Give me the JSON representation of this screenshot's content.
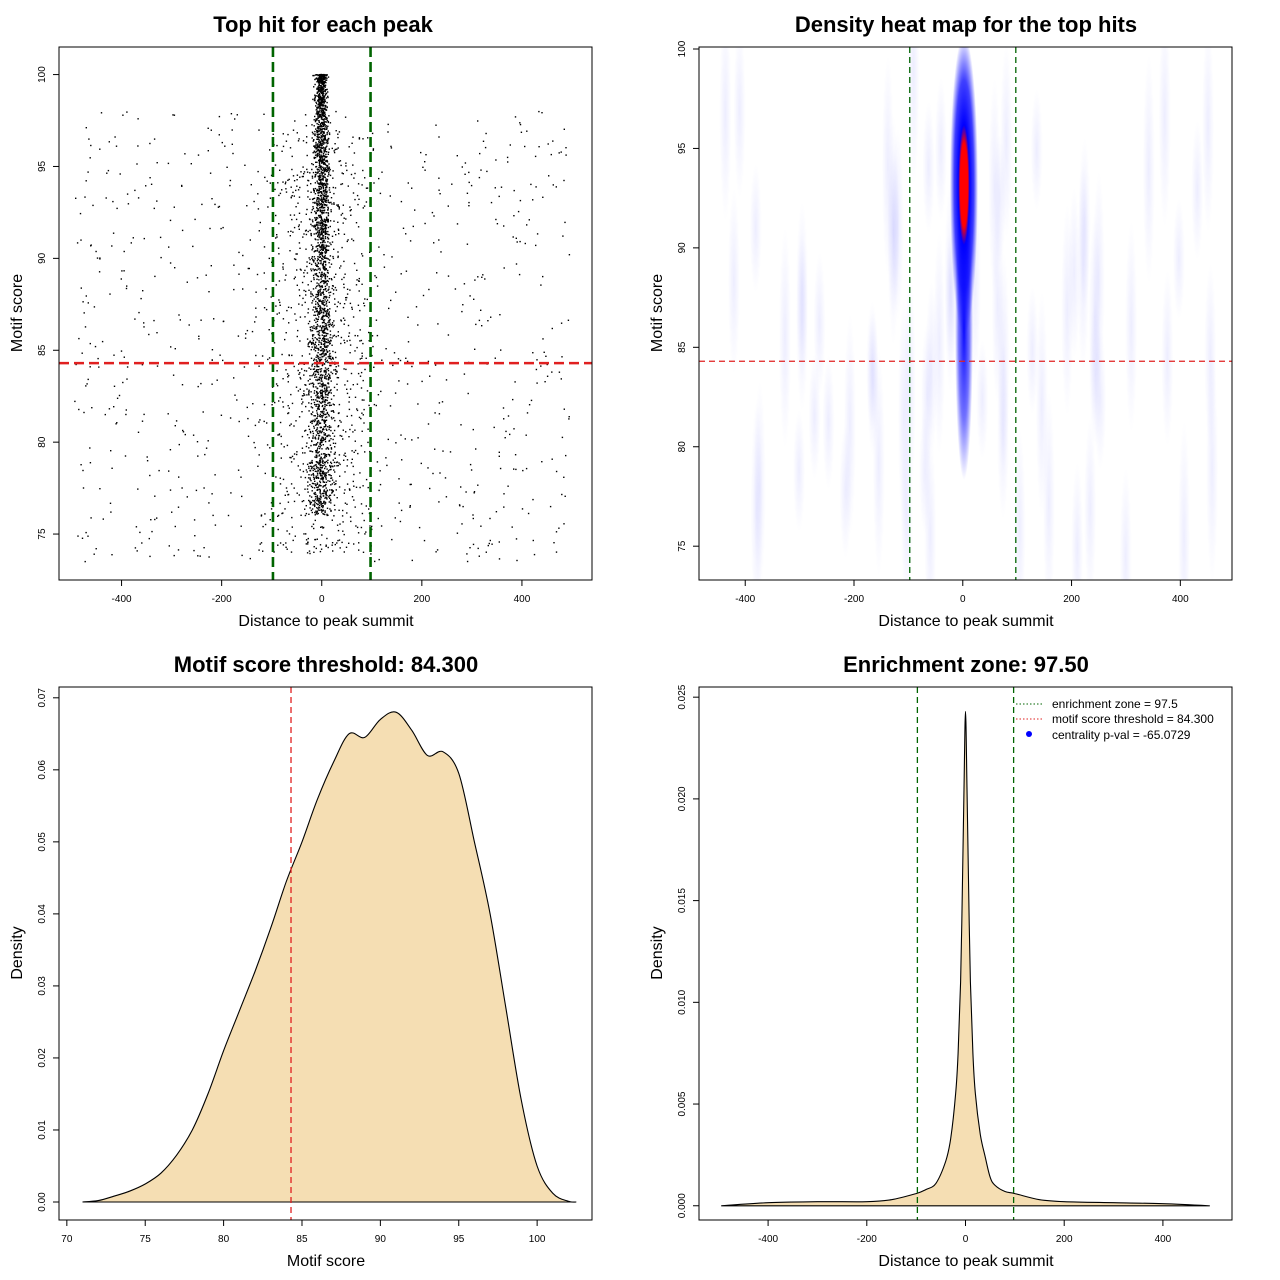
{
  "colors": {
    "zone_line": "#006400",
    "threshold_line": "#e02020",
    "density_fill": "#f5deb3",
    "points": "#000000",
    "heat_low": "#ffffff",
    "heat_mid": "#0000ff",
    "heat_high": "#ff0000"
  },
  "chart_data": [
    {
      "type": "scatter",
      "title": "Top hit for each peak",
      "xlabel": "Distance to peak summit",
      "ylabel": "Motif score",
      "xlim": [
        -525,
        540
      ],
      "ylim": [
        72.5,
        101.5
      ],
      "xticks": [
        -400,
        -200,
        0,
        200,
        400
      ],
      "yticks": [
        75,
        80,
        85,
        90,
        95,
        100
      ],
      "vlines": [
        -97.5,
        97.5
      ],
      "hline": 84.3,
      "grid": false,
      "point_distribution": {
        "center_x": 0,
        "core_score_range": [
          75,
          100
        ],
        "spread_score_range": [
          73.5,
          98
        ],
        "x_range": [
          -500,
          500
        ]
      }
    },
    {
      "type": "heatmap",
      "title": "Density heat map for the top hits",
      "xlabel": "Distance to peak summit",
      "ylabel": "Motif score",
      "xlim": [
        -485,
        495
      ],
      "ylim": [
        73.3,
        100.1
      ],
      "xticks": [
        -400,
        -200,
        0,
        200,
        400
      ],
      "yticks": [
        75,
        80,
        85,
        90,
        95,
        100
      ],
      "vlines": [
        -97.5,
        97.5
      ],
      "hline": 84.3,
      "peak": {
        "x": 0,
        "y": 94
      }
    },
    {
      "type": "area",
      "title": "Motif score threshold: 84.300",
      "xlabel": "Motif score",
      "ylabel": "Density",
      "xlim": [
        69.5,
        103.5
      ],
      "ylim": [
        -0.0025,
        0.0715
      ],
      "xticks": [
        70,
        75,
        80,
        85,
        90,
        95,
        100
      ],
      "yticks": [
        0.0,
        0.01,
        0.02,
        0.03,
        0.04,
        0.05,
        0.06,
        0.07
      ],
      "ytick_labels": [
        "0.00",
        "0.01",
        "0.02",
        "0.03",
        "0.04",
        "0.05",
        "0.06",
        "0.07"
      ],
      "vline": 84.3,
      "x": [
        71,
        72,
        73,
        74,
        75,
        76,
        77,
        78,
        79,
        80,
        81,
        82,
        83,
        84,
        85,
        86,
        87,
        88,
        89,
        90,
        91,
        92,
        93,
        94,
        95,
        96,
        97,
        98,
        99,
        100,
        101,
        102,
        102.5
      ],
      "y": [
        0.0,
        0.0002,
        0.0008,
        0.0015,
        0.0025,
        0.004,
        0.0065,
        0.01,
        0.015,
        0.021,
        0.0265,
        0.032,
        0.038,
        0.0445,
        0.05,
        0.056,
        0.061,
        0.065,
        0.0645,
        0.067,
        0.068,
        0.0655,
        0.062,
        0.0625,
        0.0595,
        0.05,
        0.04,
        0.027,
        0.014,
        0.005,
        0.0012,
        0.0001,
        0.0
      ]
    },
    {
      "type": "area",
      "title": "Enrichment zone: 97.50",
      "xlabel": "Distance to peak summit",
      "ylabel": "Density",
      "xlim": [
        -540,
        540
      ],
      "ylim": [
        -0.0007,
        0.0255
      ],
      "xticks": [
        -400,
        -200,
        0,
        200,
        400
      ],
      "yticks": [
        0.0,
        0.005,
        0.01,
        0.015,
        0.02,
        0.025
      ],
      "ytick_labels": [
        "0.000",
        "0.005",
        "0.010",
        "0.015",
        "0.020",
        "0.025"
      ],
      "vlines": [
        -97.5,
        97.5
      ],
      "x": [
        -495,
        -400,
        -300,
        -200,
        -150,
        -100,
        -80,
        -60,
        -40,
        -30,
        -20,
        -15,
        -10,
        -6,
        -3,
        0,
        3,
        6,
        10,
        15,
        20,
        30,
        40,
        50,
        60,
        80,
        100,
        150,
        200,
        300,
        400,
        495
      ],
      "y": [
        0.0,
        0.00015,
        0.0002,
        0.0002,
        0.0003,
        0.0006,
        0.0008,
        0.0011,
        0.0022,
        0.0033,
        0.0055,
        0.0075,
        0.011,
        0.016,
        0.0205,
        0.0243,
        0.0205,
        0.016,
        0.011,
        0.0075,
        0.0055,
        0.0035,
        0.0024,
        0.0014,
        0.001,
        0.0007,
        0.0006,
        0.0003,
        0.0002,
        0.00015,
        0.0001,
        0.0
      ],
      "legend": [
        {
          "label": "enrichment zone = 97.5",
          "style": "dotted-green"
        },
        {
          "label": "motif score threshold = 84.300",
          "style": "dotted-red"
        },
        {
          "label": "centrality p-val = -65.0729",
          "style": "blue-dot"
        }
      ],
      "legend_position": "top-right"
    }
  ]
}
